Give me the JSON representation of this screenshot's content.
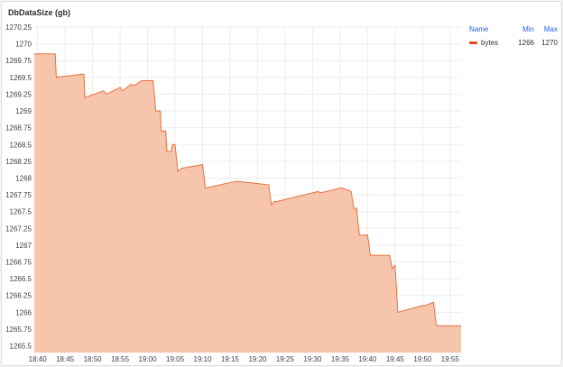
{
  "panel": {
    "title": "DbDataSize (gb)"
  },
  "legend": {
    "headers": {
      "name": "Name",
      "min": "Min",
      "max": "Max"
    },
    "rows": [
      {
        "name": "bytes",
        "min": "1266",
        "max": "1270"
      }
    ]
  },
  "colors": {
    "series_line": "#e8703a",
    "series_fill": "#f6c5ac",
    "swatch": "#e84c1c",
    "grid": "#ebedef",
    "header_link": "#1f62e0"
  },
  "chart_data": {
    "type": "area",
    "title": "DbDataSize (gb)",
    "xlabel": "",
    "ylabel": "",
    "x_tick_labels": [
      "18:40",
      "18:45",
      "18:50",
      "18:55",
      "19:00",
      "19:05",
      "19:10",
      "19:15",
      "19:20",
      "19:25",
      "19:30",
      "19:35",
      "19:40",
      "19:45",
      "19:50",
      "19:55"
    ],
    "y_tick_labels": [
      "1265.5",
      "1265.75",
      "1266",
      "1266.25",
      "1266.5",
      "1266.75",
      "1267",
      "1267.25",
      "1267.5",
      "1267.75",
      "1268",
      "1268.25",
      "1268.5",
      "1268.75",
      "1269",
      "1269.25",
      "1269.5",
      "1269.75",
      "1270",
      "1270.25"
    ],
    "x_range_minutes": [
      -0.6,
      77.0
    ],
    "ylim": [
      1265.4,
      1270.25
    ],
    "grid": true,
    "legend_position": "right",
    "series": [
      {
        "name": "bytes",
        "x_minutes": [
          -0.6,
          3.2,
          3.4,
          8.4,
          8.6,
          12.0,
          12.5,
          15.0,
          15.5,
          17.0,
          17.5,
          19.0,
          19.5,
          21.0,
          21.5,
          22.3,
          22.5,
          23.3,
          23.5,
          24.3,
          24.5,
          25.0,
          25.5,
          26.3,
          26.5,
          30.0,
          30.5,
          36.0,
          36.5,
          42.0,
          42.5,
          43.0,
          43.5,
          51.0,
          51.5,
          55.0,
          55.5,
          57.0,
          57.5,
          58.0,
          58.5,
          60.0,
          60.5,
          64.0,
          64.5,
          65.0,
          65.5,
          70.0,
          70.5,
          72.0,
          72.5,
          77.0
        ],
        "values": [
          1269.85,
          1269.85,
          1269.5,
          1269.55,
          1269.2,
          1269.3,
          1269.25,
          1269.35,
          1269.3,
          1269.4,
          1269.38,
          1269.45,
          1269.45,
          1269.45,
          1269.0,
          1269.0,
          1268.7,
          1268.7,
          1268.4,
          1268.4,
          1268.5,
          1268.5,
          1268.1,
          1268.15,
          1268.15,
          1268.2,
          1267.85,
          1267.95,
          1267.95,
          1267.9,
          1267.6,
          1267.65,
          1267.65,
          1267.8,
          1267.78,
          1267.85,
          1267.85,
          1267.8,
          1267.55,
          1267.55,
          1267.15,
          1267.15,
          1266.85,
          1266.85,
          1266.65,
          1266.7,
          1266.0,
          1266.1,
          1266.1,
          1266.15,
          1265.8,
          1265.8
        ]
      }
    ]
  }
}
